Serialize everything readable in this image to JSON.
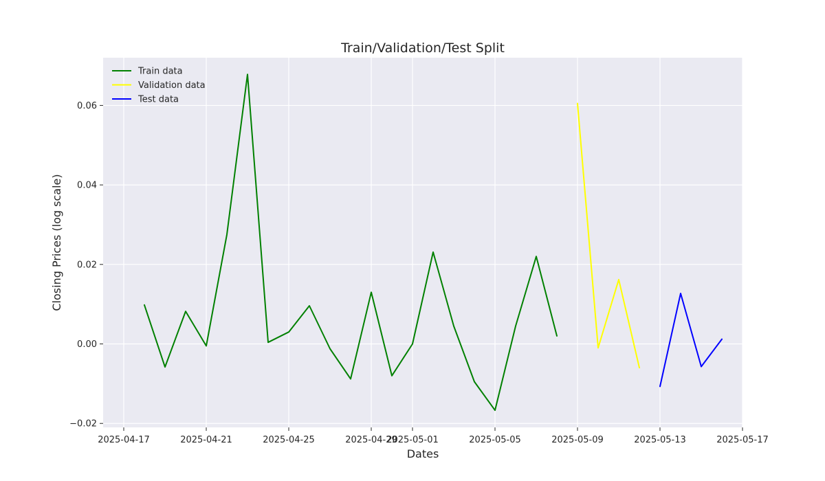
{
  "chart_data": {
    "type": "line",
    "title": "Train/Validation/Test Split",
    "xlabel": "Dates",
    "ylabel": "Closing Prices (log scale)",
    "xlim": [
      "2025-04-16",
      "2025-05-17"
    ],
    "ylim": [
      -0.021,
      0.072
    ],
    "grid": true,
    "legend_position": "top-left",
    "x_ticks": [
      "2025-04-17",
      "2025-04-21",
      "2025-04-25",
      "2025-04-29",
      "2025-05-01",
      "2025-05-05",
      "2025-05-09",
      "2025-05-13",
      "2025-05-17"
    ],
    "y_ticks": [
      -0.02,
      0.0,
      0.02,
      0.04,
      0.06
    ],
    "y_tick_labels": [
      "−0.02",
      "0.00",
      "0.02",
      "0.04",
      "0.06"
    ],
    "series": [
      {
        "name": "Train data",
        "color": "#008000",
        "x": [
          "2025-04-18",
          "2025-04-19",
          "2025-04-20",
          "2025-04-21",
          "2025-04-22",
          "2025-04-23",
          "2025-04-24",
          "2025-04-25",
          "2025-04-26",
          "2025-04-27",
          "2025-04-28",
          "2025-04-29",
          "2025-04-30",
          "2025-05-01",
          "2025-05-02",
          "2025-05-03",
          "2025-05-04",
          "2025-05-05",
          "2025-05-06",
          "2025-05-07",
          "2025-05-08"
        ],
        "values": [
          0.0098,
          -0.0058,
          0.0082,
          -0.0005,
          0.0275,
          0.0678,
          0.0004,
          0.003,
          0.0096,
          -0.0012,
          -0.0088,
          0.013,
          -0.008,
          0.0,
          0.0231,
          0.0045,
          -0.0095,
          -0.0167,
          0.0045,
          0.022,
          0.002
        ]
      },
      {
        "name": "Validation data",
        "color": "#ffff00",
        "x": [
          "2025-05-09",
          "2025-05-10",
          "2025-05-11",
          "2025-05-12"
        ],
        "values": [
          0.0605,
          -0.001,
          0.0162,
          -0.006
        ]
      },
      {
        "name": "Test data",
        "color": "#0000ff",
        "x": [
          "2025-05-13",
          "2025-05-14",
          "2025-05-15",
          "2025-05-16"
        ],
        "values": [
          -0.0107,
          0.0127,
          -0.0057,
          0.0012
        ]
      }
    ]
  }
}
